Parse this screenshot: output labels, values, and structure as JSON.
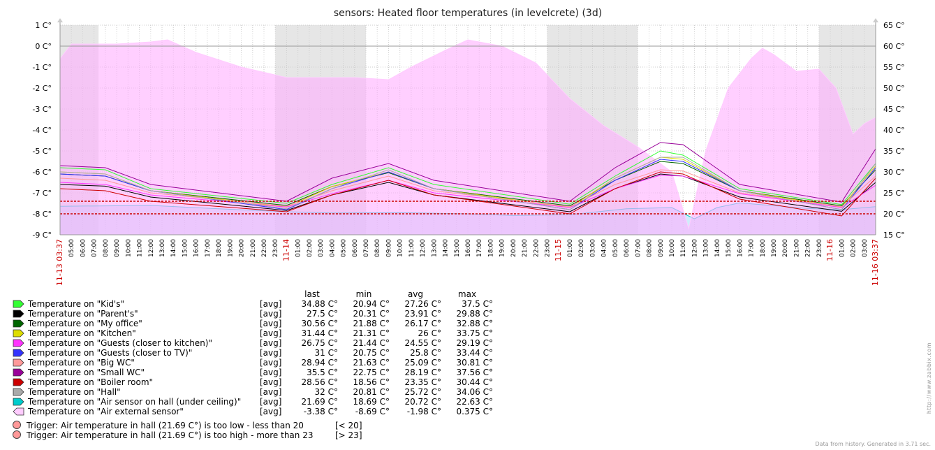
{
  "chart_data": {
    "type": "area",
    "title": "sensors: Heated floor temperatures (in levelcrete) (3d)",
    "left_axis": {
      "min": -9,
      "max": 1,
      "step": 1,
      "unit": "C°"
    },
    "right_axis": {
      "min": 15,
      "max": 65,
      "step": 5,
      "unit": "C°"
    },
    "x_labels": [
      "11-13 03:37",
      "05:00",
      "06:00",
      "07:00",
      "08:00",
      "09:00",
      "10:00",
      "11:00",
      "12:00",
      "13:00",
      "14:00",
      "15:00",
      "16:00",
      "17:00",
      "18:00",
      "19:00",
      "20:00",
      "21:00",
      "22:00",
      "23:00",
      "11-14",
      "01:00",
      "02:00",
      "03:00",
      "04:00",
      "05:00",
      "06:00",
      "07:00",
      "08:00",
      "09:00",
      "10:00",
      "11:00",
      "12:00",
      "13:00",
      "14:00",
      "15:00",
      "16:00",
      "17:00",
      "18:00",
      "19:00",
      "20:00",
      "21:00",
      "22:00",
      "23:00",
      "11-15",
      "01:00",
      "02:00",
      "03:00",
      "04:00",
      "05:00",
      "06:00",
      "07:00",
      "08:00",
      "09:00",
      "10:00",
      "11:00",
      "12:00",
      "13:00",
      "14:00",
      "15:00",
      "16:00",
      "17:00",
      "18:00",
      "19:00",
      "20:00",
      "21:00",
      "22:00",
      "23:00",
      "11-16",
      "01:00",
      "02:00",
      "03:00",
      "11-16 03:37"
    ],
    "x_label_colors": {
      "date": "#cc0000",
      "time": "#000000"
    },
    "grid": true,
    "night_shading": true,
    "series": [
      {
        "name": "Temperature on \"Kid's\"",
        "color": "#33ff33",
        "axis": "right",
        "func": "[avg]",
        "last": "34.88 C°",
        "min": "20.94 C°",
        "avg": "27.26 C°",
        "max": "37.5 C°",
        "values": [
          [
            0,
            31
          ],
          [
            4,
            30.5
          ],
          [
            8,
            26
          ],
          [
            20,
            22.5
          ],
          [
            24,
            27
          ],
          [
            29,
            31
          ],
          [
            33,
            27
          ],
          [
            45,
            22.3
          ],
          [
            49,
            29
          ],
          [
            53,
            35
          ],
          [
            55,
            34
          ],
          [
            60,
            26
          ],
          [
            69,
            22.2
          ],
          [
            72,
            32
          ]
        ]
      },
      {
        "name": "Temperature on \"Parent's\"",
        "color": "#000000",
        "axis": "right",
        "func": "[avg]",
        "last": "27.5 C°",
        "min": "20.31 C°",
        "avg": "23.91 C°",
        "max": "29.88 C°",
        "values": [
          [
            0,
            27
          ],
          [
            4,
            26.6
          ],
          [
            8,
            24
          ],
          [
            20,
            20.8
          ],
          [
            24,
            24.5
          ],
          [
            29,
            27.5
          ],
          [
            33,
            24.5
          ],
          [
            45,
            20.5
          ],
          [
            49,
            26
          ],
          [
            53,
            29.5
          ],
          [
            55,
            29
          ],
          [
            60,
            24
          ],
          [
            69,
            20.6
          ],
          [
            72,
            27.5
          ]
        ]
      },
      {
        "name": "Temperature on \"My office\"",
        "color": "#006600",
        "axis": "right",
        "func": "[avg]",
        "last": "30.56 C°",
        "min": "21.88 C°",
        "avg": "26.17 C°",
        "max": "32.88 C°",
        "values": [
          [
            0,
            29.5
          ],
          [
            4,
            29
          ],
          [
            8,
            25.5
          ],
          [
            20,
            22
          ],
          [
            24,
            26.5
          ],
          [
            29,
            29.8
          ],
          [
            33,
            26
          ],
          [
            45,
            21.9
          ],
          [
            49,
            28
          ],
          [
            53,
            32.5
          ],
          [
            55,
            32
          ],
          [
            60,
            25.5
          ],
          [
            69,
            21.9
          ],
          [
            72,
            30.5
          ]
        ]
      },
      {
        "name": "Temperature on \"Kitchen\"",
        "color": "#dddd00",
        "axis": "right",
        "func": "[avg]",
        "last": "31.44 C°",
        "min": "21.31 C°",
        "avg": "26 C°",
        "max": "33.75 C°",
        "values": [
          [
            0,
            30
          ],
          [
            4,
            29.5
          ],
          [
            8,
            25.5
          ],
          [
            20,
            21.6
          ],
          [
            24,
            26.5
          ],
          [
            29,
            30
          ],
          [
            33,
            26
          ],
          [
            45,
            21.5
          ],
          [
            49,
            28.5
          ],
          [
            53,
            33.5
          ],
          [
            55,
            33
          ],
          [
            60,
            25.5
          ],
          [
            69,
            21.6
          ],
          [
            72,
            31.4
          ]
        ]
      },
      {
        "name": "Temperature on \"Guests (closer to kitchen)\"",
        "color": "#ff33ff",
        "axis": "right",
        "func": "[avg]",
        "last": "26.75 C°",
        "min": "21.44 C°",
        "avg": "24.55 C°",
        "max": "29.19 C°",
        "values": [
          [
            0,
            27.5
          ],
          [
            4,
            27
          ],
          [
            8,
            24.5
          ],
          [
            20,
            21.6
          ],
          [
            24,
            24.8
          ],
          [
            29,
            28
          ],
          [
            33,
            25
          ],
          [
            45,
            21.5
          ],
          [
            49,
            26
          ],
          [
            53,
            29.2
          ],
          [
            55,
            29
          ],
          [
            60,
            24.8
          ],
          [
            69,
            21.5
          ],
          [
            72,
            26.8
          ]
        ]
      },
      {
        "name": "Temperature on \"Guests (closer to TV)\"",
        "color": "#3333ff",
        "axis": "right",
        "func": "[avg]",
        "last": "31 C°",
        "min": "20.75 C°",
        "avg": "25.8 C°",
        "max": "33.44 C°",
        "values": [
          [
            0,
            29.5
          ],
          [
            4,
            29
          ],
          [
            8,
            25.5
          ],
          [
            20,
            21
          ],
          [
            24,
            26
          ],
          [
            29,
            30
          ],
          [
            33,
            26
          ],
          [
            45,
            21
          ],
          [
            49,
            28
          ],
          [
            53,
            33
          ],
          [
            55,
            32.5
          ],
          [
            60,
            25.5
          ],
          [
            69,
            21
          ],
          [
            72,
            31
          ]
        ]
      },
      {
        "name": "Temperature on \"Big WC\"",
        "color": "#ff9999",
        "axis": "right",
        "func": "[avg]",
        "last": "28.94 C°",
        "min": "21.63 C°",
        "avg": "25.09 C°",
        "max": "30.81 C°",
        "values": [
          [
            0,
            28.5
          ],
          [
            4,
            28
          ],
          [
            8,
            25
          ],
          [
            20,
            21.8
          ],
          [
            24,
            25.5
          ],
          [
            29,
            29
          ],
          [
            33,
            25.5
          ],
          [
            45,
            21.7
          ],
          [
            49,
            27
          ],
          [
            53,
            30.5
          ],
          [
            55,
            30.2
          ],
          [
            60,
            25
          ],
          [
            69,
            21.7
          ],
          [
            72,
            29
          ]
        ]
      },
      {
        "name": "Temperature on \"Small WC\"",
        "color": "#990099",
        "axis": "right",
        "func": "[avg]",
        "last": "35.5 C°",
        "min": "22.75 C°",
        "avg": "28.19 C°",
        "max": "37.56 C°",
        "values": [
          [
            0,
            31.5
          ],
          [
            4,
            31
          ],
          [
            8,
            27
          ],
          [
            20,
            23
          ],
          [
            24,
            28.5
          ],
          [
            29,
            32
          ],
          [
            33,
            28
          ],
          [
            45,
            23
          ],
          [
            49,
            31
          ],
          [
            53,
            37
          ],
          [
            55,
            36.5
          ],
          [
            60,
            27
          ],
          [
            69,
            22.8
          ],
          [
            72,
            35.5
          ]
        ]
      },
      {
        "name": "Temperature on \"Boiler room\"",
        "color": "#cc0000",
        "axis": "right",
        "func": "[avg]",
        "last": "28.56 C°",
        "min": "18.56 C°",
        "avg": "23.35 C°",
        "max": "30.44 C°",
        "values": [
          [
            0,
            26
          ],
          [
            4,
            25.5
          ],
          [
            8,
            23
          ],
          [
            20,
            20.5
          ],
          [
            24,
            24.5
          ],
          [
            29,
            28
          ],
          [
            33,
            24.5
          ],
          [
            45,
            20
          ],
          [
            49,
            26
          ],
          [
            53,
            30
          ],
          [
            55,
            29.5
          ],
          [
            60,
            23.5
          ],
          [
            69,
            19.5
          ],
          [
            72,
            28.5
          ]
        ]
      },
      {
        "name": "Temperature on \"Hall\"",
        "color": "#aaaaaa",
        "axis": "right",
        "func": "[avg]",
        "last": "32 C°",
        "min": "20.81 C°",
        "avg": "25.72 C°",
        "max": "34.06 C°",
        "values": [
          [
            0,
            30
          ],
          [
            4,
            29.5
          ],
          [
            8,
            25.5
          ],
          [
            20,
            21.2
          ],
          [
            24,
            26
          ],
          [
            29,
            30.5
          ],
          [
            33,
            26
          ],
          [
            45,
            21
          ],
          [
            49,
            28.5
          ],
          [
            53,
            33.5
          ],
          [
            55,
            33.5
          ],
          [
            60,
            25.5
          ],
          [
            69,
            21
          ],
          [
            72,
            32
          ]
        ]
      },
      {
        "name": "Temperature on \"Air sensor on hall (under ceiling)\"",
        "color": "#00cccc",
        "axis": "right",
        "func": "[avg]",
        "last": "21.69 C°",
        "min": "18.69 C°",
        "avg": "20.72 C°",
        "max": "22.63 C°",
        "filled": true,
        "values": [
          [
            0,
            21.8
          ],
          [
            8,
            22
          ],
          [
            14,
            21.2
          ],
          [
            20,
            20.5
          ],
          [
            24,
            20.2
          ],
          [
            30,
            20.3
          ],
          [
            36,
            20
          ],
          [
            40,
            19.6
          ],
          [
            45,
            19.8
          ],
          [
            50,
            21.2
          ],
          [
            54,
            21.5
          ],
          [
            56,
            18.8
          ],
          [
            58,
            21.5
          ],
          [
            60,
            22.6
          ],
          [
            66,
            21.3
          ],
          [
            69,
            21
          ],
          [
            72,
            21.7
          ]
        ]
      },
      {
        "name": "Temperature on \"Air external sensor\"",
        "color": "#ffccff",
        "axis": "left",
        "func": "[avg]",
        "last": "-3.38 C°",
        "min": "-8.69 C°",
        "avg": "-1.98 C°",
        "max": "0.375 C°",
        "filled": true,
        "values": [
          [
            0,
            -0.6
          ],
          [
            1,
            0.1
          ],
          [
            5,
            0.1
          ],
          [
            8,
            0.2
          ],
          [
            9.5,
            0.3
          ],
          [
            12,
            -0.3
          ],
          [
            16,
            -1
          ],
          [
            20,
            -1.5
          ],
          [
            26,
            -1.5
          ],
          [
            29,
            -1.6
          ],
          [
            31,
            -1
          ],
          [
            34,
            -0.2
          ],
          [
            36,
            0.3
          ],
          [
            39,
            0
          ],
          [
            42,
            -0.8
          ],
          [
            45,
            -2.5
          ],
          [
            48,
            -3.8
          ],
          [
            51,
            -4.8
          ],
          [
            54,
            -6
          ],
          [
            55.5,
            -8.7
          ],
          [
            57,
            -5
          ],
          [
            59,
            -2
          ],
          [
            61,
            -0.6
          ],
          [
            62,
            -0.1
          ],
          [
            63,
            -0.4
          ],
          [
            65,
            -1.2
          ],
          [
            67,
            -1.1
          ],
          [
            68.5,
            -2
          ],
          [
            70,
            -4.2
          ],
          [
            71,
            -3.7
          ],
          [
            72,
            -3.4
          ]
        ]
      }
    ],
    "thresholds": [
      {
        "value": 20,
        "axis": "right",
        "color": "#cc0000"
      },
      {
        "value": 23,
        "axis": "right",
        "color": "#cc0000"
      }
    ],
    "legend_headers": [
      "last",
      "min",
      "avg",
      "max"
    ],
    "triggers": [
      {
        "label": "Trigger: Air temperature in hall (21.69 C°) is too low - less than 20",
        "condition": "[< 20]",
        "color": "#ff9999"
      },
      {
        "label": "Trigger: Air temperature in hall (21.69 C°) is too high - more than 23",
        "condition": "[> 23]",
        "color": "#ff9999"
      }
    ]
  },
  "watermark": "http://www.zabbix.com",
  "footer": "Data from history. Generated in 3.71 sec."
}
